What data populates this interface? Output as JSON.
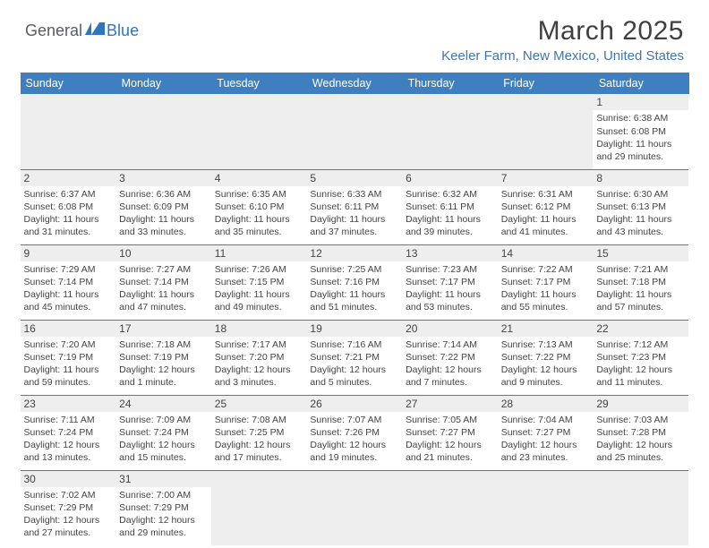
{
  "logo": {
    "text1": "General",
    "text2": "Blue",
    "icon_color": "#2f77bc",
    "text1_color": "#555d66"
  },
  "title": "March 2025",
  "subtitle": "Keeler Farm, New Mexico, United States",
  "header_bg": "#3f7fbf",
  "pad_bg": "#eeeeee",
  "border_color": "#3f7fbf",
  "daynames": [
    "Sunday",
    "Monday",
    "Tuesday",
    "Wednesday",
    "Thursday",
    "Friday",
    "Saturday"
  ],
  "weeks": [
    [
      null,
      null,
      null,
      null,
      null,
      null,
      {
        "n": "1",
        "sr": "Sunrise: 6:38 AM",
        "ss": "Sunset: 6:08 PM",
        "d1": "Daylight: 11 hours",
        "d2": "and 29 minutes."
      }
    ],
    [
      {
        "n": "2",
        "sr": "Sunrise: 6:37 AM",
        "ss": "Sunset: 6:08 PM",
        "d1": "Daylight: 11 hours",
        "d2": "and 31 minutes."
      },
      {
        "n": "3",
        "sr": "Sunrise: 6:36 AM",
        "ss": "Sunset: 6:09 PM",
        "d1": "Daylight: 11 hours",
        "d2": "and 33 minutes."
      },
      {
        "n": "4",
        "sr": "Sunrise: 6:35 AM",
        "ss": "Sunset: 6:10 PM",
        "d1": "Daylight: 11 hours",
        "d2": "and 35 minutes."
      },
      {
        "n": "5",
        "sr": "Sunrise: 6:33 AM",
        "ss": "Sunset: 6:11 PM",
        "d1": "Daylight: 11 hours",
        "d2": "and 37 minutes."
      },
      {
        "n": "6",
        "sr": "Sunrise: 6:32 AM",
        "ss": "Sunset: 6:11 PM",
        "d1": "Daylight: 11 hours",
        "d2": "and 39 minutes."
      },
      {
        "n": "7",
        "sr": "Sunrise: 6:31 AM",
        "ss": "Sunset: 6:12 PM",
        "d1": "Daylight: 11 hours",
        "d2": "and 41 minutes."
      },
      {
        "n": "8",
        "sr": "Sunrise: 6:30 AM",
        "ss": "Sunset: 6:13 PM",
        "d1": "Daylight: 11 hours",
        "d2": "and 43 minutes."
      }
    ],
    [
      {
        "n": "9",
        "sr": "Sunrise: 7:29 AM",
        "ss": "Sunset: 7:14 PM",
        "d1": "Daylight: 11 hours",
        "d2": "and 45 minutes."
      },
      {
        "n": "10",
        "sr": "Sunrise: 7:27 AM",
        "ss": "Sunset: 7:14 PM",
        "d1": "Daylight: 11 hours",
        "d2": "and 47 minutes."
      },
      {
        "n": "11",
        "sr": "Sunrise: 7:26 AM",
        "ss": "Sunset: 7:15 PM",
        "d1": "Daylight: 11 hours",
        "d2": "and 49 minutes."
      },
      {
        "n": "12",
        "sr": "Sunrise: 7:25 AM",
        "ss": "Sunset: 7:16 PM",
        "d1": "Daylight: 11 hours",
        "d2": "and 51 minutes."
      },
      {
        "n": "13",
        "sr": "Sunrise: 7:23 AM",
        "ss": "Sunset: 7:17 PM",
        "d1": "Daylight: 11 hours",
        "d2": "and 53 minutes."
      },
      {
        "n": "14",
        "sr": "Sunrise: 7:22 AM",
        "ss": "Sunset: 7:17 PM",
        "d1": "Daylight: 11 hours",
        "d2": "and 55 minutes."
      },
      {
        "n": "15",
        "sr": "Sunrise: 7:21 AM",
        "ss": "Sunset: 7:18 PM",
        "d1": "Daylight: 11 hours",
        "d2": "and 57 minutes."
      }
    ],
    [
      {
        "n": "16",
        "sr": "Sunrise: 7:20 AM",
        "ss": "Sunset: 7:19 PM",
        "d1": "Daylight: 11 hours",
        "d2": "and 59 minutes."
      },
      {
        "n": "17",
        "sr": "Sunrise: 7:18 AM",
        "ss": "Sunset: 7:19 PM",
        "d1": "Daylight: 12 hours",
        "d2": "and 1 minute."
      },
      {
        "n": "18",
        "sr": "Sunrise: 7:17 AM",
        "ss": "Sunset: 7:20 PM",
        "d1": "Daylight: 12 hours",
        "d2": "and 3 minutes."
      },
      {
        "n": "19",
        "sr": "Sunrise: 7:16 AM",
        "ss": "Sunset: 7:21 PM",
        "d1": "Daylight: 12 hours",
        "d2": "and 5 minutes."
      },
      {
        "n": "20",
        "sr": "Sunrise: 7:14 AM",
        "ss": "Sunset: 7:22 PM",
        "d1": "Daylight: 12 hours",
        "d2": "and 7 minutes."
      },
      {
        "n": "21",
        "sr": "Sunrise: 7:13 AM",
        "ss": "Sunset: 7:22 PM",
        "d1": "Daylight: 12 hours",
        "d2": "and 9 minutes."
      },
      {
        "n": "22",
        "sr": "Sunrise: 7:12 AM",
        "ss": "Sunset: 7:23 PM",
        "d1": "Daylight: 12 hours",
        "d2": "and 11 minutes."
      }
    ],
    [
      {
        "n": "23",
        "sr": "Sunrise: 7:11 AM",
        "ss": "Sunset: 7:24 PM",
        "d1": "Daylight: 12 hours",
        "d2": "and 13 minutes."
      },
      {
        "n": "24",
        "sr": "Sunrise: 7:09 AM",
        "ss": "Sunset: 7:24 PM",
        "d1": "Daylight: 12 hours",
        "d2": "and 15 minutes."
      },
      {
        "n": "25",
        "sr": "Sunrise: 7:08 AM",
        "ss": "Sunset: 7:25 PM",
        "d1": "Daylight: 12 hours",
        "d2": "and 17 minutes."
      },
      {
        "n": "26",
        "sr": "Sunrise: 7:07 AM",
        "ss": "Sunset: 7:26 PM",
        "d1": "Daylight: 12 hours",
        "d2": "and 19 minutes."
      },
      {
        "n": "27",
        "sr": "Sunrise: 7:05 AM",
        "ss": "Sunset: 7:27 PM",
        "d1": "Daylight: 12 hours",
        "d2": "and 21 minutes."
      },
      {
        "n": "28",
        "sr": "Sunrise: 7:04 AM",
        "ss": "Sunset: 7:27 PM",
        "d1": "Daylight: 12 hours",
        "d2": "and 23 minutes."
      },
      {
        "n": "29",
        "sr": "Sunrise: 7:03 AM",
        "ss": "Sunset: 7:28 PM",
        "d1": "Daylight: 12 hours",
        "d2": "and 25 minutes."
      }
    ],
    [
      {
        "n": "30",
        "sr": "Sunrise: 7:02 AM",
        "ss": "Sunset: 7:29 PM",
        "d1": "Daylight: 12 hours",
        "d2": "and 27 minutes."
      },
      {
        "n": "31",
        "sr": "Sunrise: 7:00 AM",
        "ss": "Sunset: 7:29 PM",
        "d1": "Daylight: 12 hours",
        "d2": "and 29 minutes."
      },
      null,
      null,
      null,
      null,
      null
    ]
  ]
}
